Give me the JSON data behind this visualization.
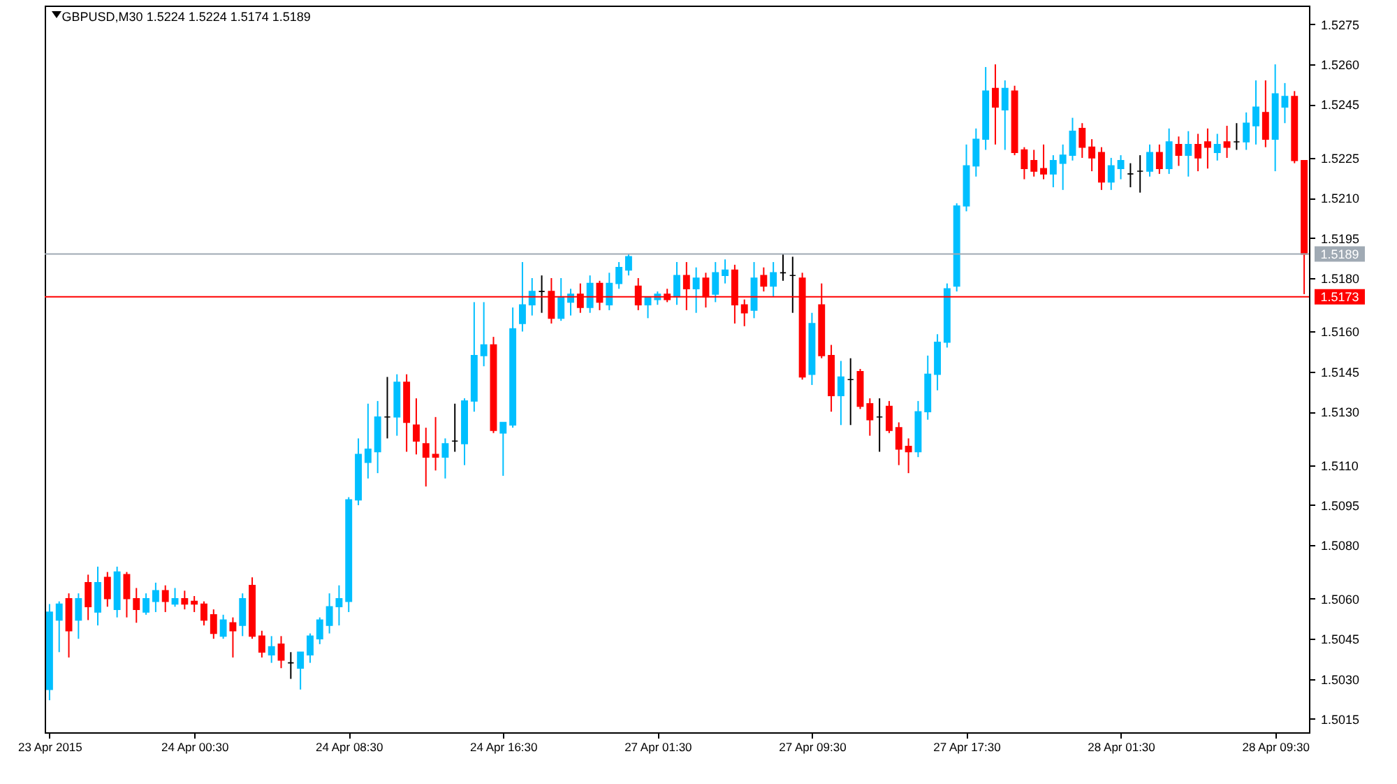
{
  "chart_data": {
    "type": "candlestick",
    "title": "GBPUSD,M30 1.5224 1.5224 1.5174 1.5189",
    "categories": [
      "23 Apr 2015",
      null,
      null,
      null,
      null,
      null,
      null,
      null,
      null,
      null,
      null,
      null,
      null,
      null,
      null,
      "24 Apr 00:30",
      null,
      null,
      null,
      null,
      null,
      null,
      null,
      null,
      null,
      null,
      null,
      null,
      null,
      null,
      null,
      "24 Apr 08:30",
      null,
      null,
      null,
      null,
      null,
      null,
      null,
      null,
      null,
      null,
      null,
      null,
      null,
      null,
      null,
      "24 Apr 16:30",
      null,
      null,
      null,
      null,
      null,
      null,
      null,
      null,
      null,
      null,
      null,
      null,
      null,
      null,
      null,
      "27 Apr 01:30",
      null,
      null,
      null,
      null,
      null,
      null,
      null,
      null,
      null,
      null,
      null,
      null,
      null,
      null,
      null,
      "27 Apr 09:30",
      null,
      null,
      null,
      null,
      null,
      null,
      null,
      null,
      null,
      null,
      null,
      null,
      null,
      null,
      null,
      "27 Apr 17:30",
      null,
      null,
      null,
      null,
      null,
      null,
      null,
      null,
      null,
      null,
      null,
      null,
      null,
      null,
      null,
      "28 Apr 01:30",
      null,
      null,
      null,
      null,
      null,
      null,
      null,
      null,
      null,
      null,
      null,
      null,
      null,
      null,
      null,
      "28 Apr 09:30",
      null,
      null,
      null
    ],
    "ohlc": [
      [
        1.5026,
        1.5058,
        1.5022,
        1.5055
      ],
      [
        1.5052,
        1.5059,
        1.504,
        1.5058
      ],
      [
        1.506,
        1.5062,
        1.5038,
        1.5048
      ],
      [
        1.5052,
        1.5062,
        1.5045,
        1.506
      ],
      [
        1.5066,
        1.5069,
        1.5052,
        1.5057
      ],
      [
        1.5055,
        1.5072,
        1.505,
        1.5066
      ],
      [
        1.5068,
        1.507,
        1.5057,
        1.506
      ],
      [
        1.5056,
        1.5072,
        1.5053,
        1.507
      ],
      [
        1.5069,
        1.507,
        1.5053,
        1.506
      ],
      [
        1.506,
        1.5064,
        1.5051,
        1.5056
      ],
      [
        1.5055,
        1.5062,
        1.5054,
        1.506
      ],
      [
        1.5059,
        1.5066,
        1.5055,
        1.5063
      ],
      [
        1.5063,
        1.5065,
        1.5055,
        1.5059
      ],
      [
        1.5058,
        1.5064,
        1.5057,
        1.506
      ],
      [
        1.506,
        1.5063,
        1.5056,
        1.5058
      ],
      [
        1.5059,
        1.5061,
        1.5055,
        1.5058
      ],
      [
        1.5058,
        1.5059,
        1.505,
        1.5052
      ],
      [
        1.5054,
        1.5056,
        1.5045,
        1.5047
      ],
      [
        1.5046,
        1.5054,
        1.5045,
        1.5052
      ],
      [
        1.5051,
        1.5053,
        1.5038,
        1.5048
      ],
      [
        1.505,
        1.5062,
        1.5046,
        1.506
      ],
      [
        1.5065,
        1.5068,
        1.5045,
        1.5046
      ],
      [
        1.5046,
        1.5048,
        1.5038,
        1.504
      ],
      [
        1.5039,
        1.5046,
        1.5036,
        1.5042
      ],
      [
        1.5043,
        1.5046,
        1.5034,
        1.5037
      ],
      [
        1.5036,
        1.504,
        1.503,
        1.5036
      ],
      [
        1.5034,
        1.504,
        1.5026,
        1.504
      ],
      [
        1.5039,
        1.5047,
        1.5036,
        1.5046
      ],
      [
        1.5045,
        1.5053,
        1.5043,
        1.5052
      ],
      [
        1.505,
        1.5062,
        1.5047,
        1.5057
      ],
      [
        1.5057,
        1.5065,
        1.505,
        1.506
      ],
      [
        1.5059,
        1.5098,
        1.5055,
        1.5097
      ],
      [
        1.5097,
        1.512,
        1.5095,
        1.5114
      ],
      [
        1.5111,
        1.5133,
        1.5105,
        1.5116
      ],
      [
        1.5115,
        1.5134,
        1.5107,
        1.5128
      ],
      [
        1.5128,
        1.5143,
        1.512,
        1.5128
      ],
      [
        1.5128,
        1.5144,
        1.5121,
        1.5141
      ],
      [
        1.5141,
        1.5144,
        1.5115,
        1.5126
      ],
      [
        1.5125,
        1.5135,
        1.5114,
        1.5119
      ],
      [
        1.5118,
        1.5124,
        1.5102,
        1.5113
      ],
      [
        1.5114,
        1.5128,
        1.5108,
        1.5113
      ],
      [
        1.5113,
        1.512,
        1.5105,
        1.5118
      ],
      [
        1.5119,
        1.5133,
        1.5115,
        1.5119
      ],
      [
        1.5118,
        1.5135,
        1.511,
        1.5134
      ],
      [
        1.5134,
        1.5171,
        1.513,
        1.5151
      ],
      [
        1.5151,
        1.5171,
        1.5147,
        1.5155
      ],
      [
        1.5155,
        1.5158,
        1.5122,
        1.5123
      ],
      [
        1.5122,
        1.5126,
        1.5106,
        1.5126
      ],
      [
        1.5125,
        1.5169,
        1.5124,
        1.5161
      ],
      [
        1.5163,
        1.5186,
        1.516,
        1.517
      ],
      [
        1.517,
        1.518,
        1.5166,
        1.5175
      ],
      [
        1.5175,
        1.5181,
        1.5167,
        1.5175
      ],
      [
        1.5175,
        1.518,
        1.5163,
        1.5165
      ],
      [
        1.5165,
        1.518,
        1.5164,
        1.5173
      ],
      [
        1.5171,
        1.5176,
        1.5166,
        1.5174
      ],
      [
        1.5174,
        1.5178,
        1.5167,
        1.5169
      ],
      [
        1.5169,
        1.5181,
        1.5167,
        1.5178
      ],
      [
        1.5178,
        1.5179,
        1.5168,
        1.5171
      ],
      [
        1.517,
        1.5182,
        1.5168,
        1.5178
      ],
      [
        1.5178,
        1.5186,
        1.5176,
        1.5184
      ],
      [
        1.5183,
        1.5189,
        1.5181,
        1.5188
      ],
      [
        1.5177,
        1.518,
        1.5168,
        1.517
      ],
      [
        1.517,
        1.5173,
        1.5165,
        1.5173
      ],
      [
        1.5172,
        1.5175,
        1.517,
        1.5174
      ],
      [
        1.5174,
        1.5176,
        1.5171,
        1.5172
      ],
      [
        1.5173,
        1.5186,
        1.517,
        1.5181
      ],
      [
        1.5181,
        1.5186,
        1.5168,
        1.5176
      ],
      [
        1.5176,
        1.5184,
        1.5167,
        1.518
      ],
      [
        1.518,
        1.5182,
        1.5169,
        1.5173
      ],
      [
        1.5174,
        1.5186,
        1.5171,
        1.5182
      ],
      [
        1.5181,
        1.5187,
        1.5178,
        1.5183
      ],
      [
        1.5183,
        1.5185,
        1.5163,
        1.517
      ],
      [
        1.517,
        1.5172,
        1.5162,
        1.5167
      ],
      [
        1.5168,
        1.5186,
        1.5165,
        1.518
      ],
      [
        1.5181,
        1.5184,
        1.5175,
        1.5177
      ],
      [
        1.5177,
        1.5186,
        1.5173,
        1.5182
      ],
      [
        1.5182,
        1.5189,
        1.5179,
        1.5182
      ],
      [
        1.5181,
        1.5188,
        1.5167,
        1.5181
      ],
      [
        1.518,
        1.5182,
        1.5142,
        1.5143
      ],
      [
        1.5144,
        1.5167,
        1.514,
        1.5163
      ],
      [
        1.517,
        1.5178,
        1.515,
        1.5151
      ],
      [
        1.5151,
        1.5155,
        1.513,
        1.5136
      ],
      [
        1.5136,
        1.5149,
        1.5125,
        1.5143
      ],
      [
        1.5142,
        1.515,
        1.5125,
        1.5142
      ],
      [
        1.5145,
        1.5146,
        1.5131,
        1.5132
      ],
      [
        1.5133,
        1.5135,
        1.5121,
        1.5127
      ],
      [
        1.5128,
        1.5135,
        1.5115,
        1.5128
      ],
      [
        1.5132,
        1.5134,
        1.5122,
        1.5123
      ],
      [
        1.5124,
        1.5126,
        1.511,
        1.5116
      ],
      [
        1.5117,
        1.512,
        1.5107,
        1.5115
      ],
      [
        1.5115,
        1.5134,
        1.5113,
        1.513
      ],
      [
        1.513,
        1.5151,
        1.5127,
        1.5144
      ],
      [
        1.5144,
        1.5159,
        1.5138,
        1.5156
      ],
      [
        1.5156,
        1.5178,
        1.5154,
        1.5176
      ],
      [
        1.5177,
        1.5208,
        1.5175,
        1.5207
      ],
      [
        1.5207,
        1.523,
        1.5205,
        1.5222
      ],
      [
        1.5222,
        1.5236,
        1.5218,
        1.5232
      ],
      [
        1.5232,
        1.5259,
        1.5228,
        1.525
      ],
      [
        1.5251,
        1.526,
        1.523,
        1.5244
      ],
      [
        1.5243,
        1.5254,
        1.5228,
        1.5251
      ],
      [
        1.525,
        1.5252,
        1.5226,
        1.5227
      ],
      [
        1.5228,
        1.5229,
        1.5217,
        1.5221
      ],
      [
        1.5224,
        1.5228,
        1.5218,
        1.522
      ],
      [
        1.5221,
        1.523,
        1.5217,
        1.5219
      ],
      [
        1.5219,
        1.5226,
        1.5214,
        1.5224
      ],
      [
        1.5223,
        1.523,
        1.5213,
        1.5226
      ],
      [
        1.5226,
        1.524,
        1.5224,
        1.5235
      ],
      [
        1.5236,
        1.5238,
        1.5225,
        1.5229
      ],
      [
        1.5229,
        1.5232,
        1.522,
        1.5225
      ],
      [
        1.5227,
        1.5229,
        1.5213,
        1.5216
      ],
      [
        1.5216,
        1.5225,
        1.5213,
        1.5222
      ],
      [
        1.5221,
        1.5226,
        1.5217,
        1.5224
      ],
      [
        1.5219,
        1.5223,
        1.5214,
        1.5219
      ],
      [
        1.522,
        1.5226,
        1.5212,
        1.522
      ],
      [
        1.522,
        1.523,
        1.5218,
        1.5227
      ],
      [
        1.5227,
        1.523,
        1.5219,
        1.5221
      ],
      [
        1.5221,
        1.5236,
        1.5219,
        1.5231
      ],
      [
        1.523,
        1.5233,
        1.5222,
        1.5226
      ],
      [
        1.5226,
        1.5235,
        1.5218,
        1.523
      ],
      [
        1.523,
        1.5234,
        1.522,
        1.5225
      ],
      [
        1.5231,
        1.5236,
        1.5221,
        1.5229
      ],
      [
        1.5227,
        1.5234,
        1.5224,
        1.523
      ],
      [
        1.5231,
        1.5237,
        1.5225,
        1.5229
      ],
      [
        1.5231,
        1.5238,
        1.5228,
        1.5231
      ],
      [
        1.5231,
        1.5242,
        1.5228,
        1.5238
      ],
      [
        1.5237,
        1.5254,
        1.523,
        1.5244
      ],
      [
        1.5242,
        1.5254,
        1.5229,
        1.5232
      ],
      [
        1.5232,
        1.526,
        1.522,
        1.5249
      ],
      [
        1.5244,
        1.5253,
        1.5238,
        1.5248
      ],
      [
        1.5248,
        1.525,
        1.5223,
        1.5224
      ],
      [
        1.5224,
        1.5224,
        1.5174,
        1.5189
      ]
    ],
    "colors": [
      "#00bfff",
      "#00bfff",
      "#ff0000",
      "#00bfff",
      "#ff0000",
      "#00bfff",
      "#ff0000",
      "#00bfff",
      "#ff0000",
      "#ff0000",
      "#00bfff",
      "#00bfff",
      "#ff0000",
      "#00bfff",
      "#ff0000",
      "#ff0000",
      "#ff0000",
      "#ff0000",
      "#00bfff",
      "#ff0000",
      "#00bfff",
      "#ff0000",
      "#ff0000",
      "#00bfff",
      "#ff0000",
      "#000000",
      "#00bfff",
      "#00bfff",
      "#00bfff",
      "#00bfff",
      "#00bfff",
      "#00bfff",
      "#00bfff",
      "#00bfff",
      "#00bfff",
      "#000000",
      "#00bfff",
      "#ff0000",
      "#ff0000",
      "#ff0000",
      "#ff0000",
      "#00bfff",
      "#000000",
      "#00bfff",
      "#00bfff",
      "#00bfff",
      "#ff0000",
      "#00bfff",
      "#00bfff",
      "#00bfff",
      "#00bfff",
      "#000000",
      "#ff0000",
      "#00bfff",
      "#00bfff",
      "#ff0000",
      "#00bfff",
      "#ff0000",
      "#00bfff",
      "#00bfff",
      "#00bfff",
      "#ff0000",
      "#00bfff",
      "#00bfff",
      "#ff0000",
      "#00bfff",
      "#ff0000",
      "#00bfff",
      "#ff0000",
      "#00bfff",
      "#00bfff",
      "#ff0000",
      "#ff0000",
      "#00bfff",
      "#ff0000",
      "#00bfff",
      "#000000",
      "#000000",
      "#ff0000",
      "#00bfff",
      "#ff0000",
      "#ff0000",
      "#00bfff",
      "#000000",
      "#ff0000",
      "#ff0000",
      "#000000",
      "#ff0000",
      "#ff0000",
      "#ff0000",
      "#00bfff",
      "#00bfff",
      "#00bfff",
      "#00bfff",
      "#00bfff",
      "#00bfff",
      "#00bfff",
      "#00bfff",
      "#ff0000",
      "#00bfff",
      "#ff0000",
      "#ff0000",
      "#ff0000",
      "#ff0000",
      "#00bfff",
      "#00bfff",
      "#00bfff",
      "#ff0000",
      "#ff0000",
      "#ff0000",
      "#00bfff",
      "#00bfff",
      "#000000",
      "#000000",
      "#00bfff",
      "#ff0000",
      "#00bfff",
      "#ff0000",
      "#00bfff",
      "#ff0000",
      "#ff0000",
      "#00bfff",
      "#ff0000",
      "#000000",
      "#00bfff",
      "#00bfff",
      "#ff0000",
      "#00bfff",
      "#00bfff",
      "#ff0000",
      "#ff0000"
    ],
    "ylim": [
      1.501,
      1.5282
    ],
    "yticks": [
      1.5015,
      {
        "value": 1.503,
        "label": "1.5030"
      },
      1.5045,
      {
        "value": 1.506,
        "label": "1.5060"
      },
      {
        "value": 1.508,
        "label": "1.5080"
      },
      1.5095,
      {
        "value": 1.511,
        "label": "1.5110"
      },
      {
        "value": 1.513,
        "label": "1.5130"
      },
      1.5145,
      {
        "value": 1.516,
        "label": "1.5160"
      },
      {
        "value": 1.518,
        "label": "1.5180"
      },
      1.5195,
      {
        "value": 1.521,
        "label": "1.5210"
      },
      1.5225,
      1.5245,
      {
        "value": 1.526,
        "label": "1.5260"
      },
      1.5275
    ],
    "ref_lines": [
      {
        "axis": "y",
        "value": 1.5189,
        "label": "1.5189",
        "color": "#a0aab4"
      },
      {
        "axis": "y",
        "value": 1.5173,
        "label": "1.5173",
        "color": "#ff0000"
      }
    ]
  }
}
